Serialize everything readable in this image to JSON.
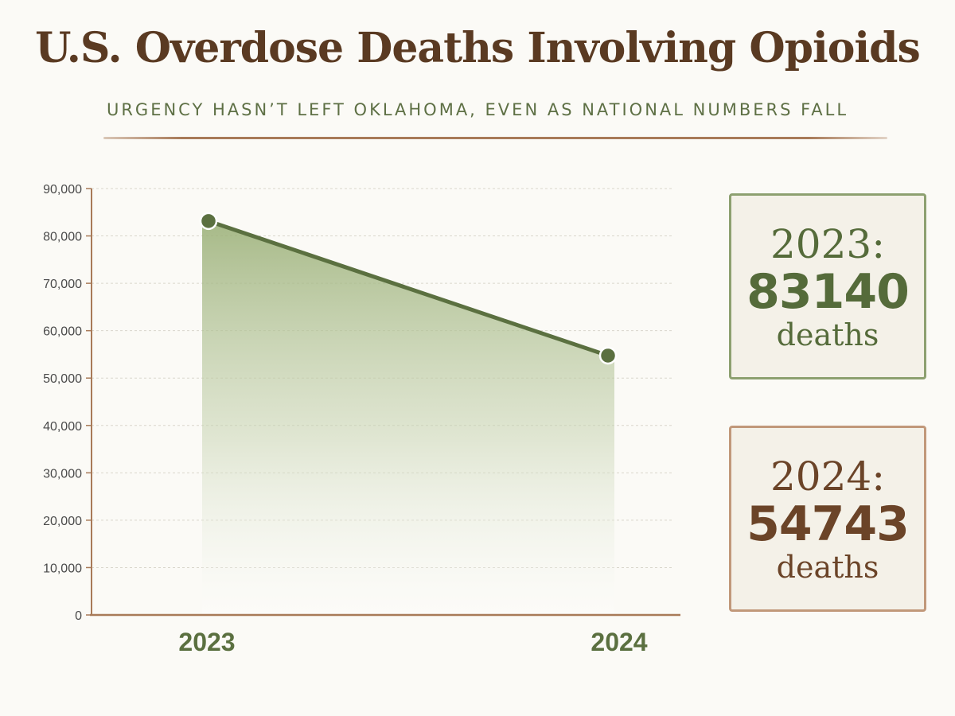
{
  "title": "U.S. Overdose Deaths Involving Opioids",
  "subtitle": "URGENCY HASN’T LEFT OKLAHOMA, EVEN AS NATIONAL NUMBERS FALL",
  "colors": {
    "green": "#5b7040",
    "brown": "#5a3a22",
    "axis": "#a87a58"
  },
  "chart_data": {
    "type": "area",
    "categories": [
      "2023",
      "2024"
    ],
    "series": [
      {
        "values": [
          83140,
          54743
        ]
      }
    ],
    "ylim": [
      0,
      90000
    ],
    "yticks": [
      "0",
      "10,000",
      "20,000",
      "30,000",
      "40,000",
      "50,000",
      "60,000",
      "70,000",
      "80,000",
      "90,000"
    ],
    "grid": true,
    "title": "U.S. Overdose Deaths Involving Opioids",
    "subtitle": "URGENCY HASN’T LEFT OKLAHOMA, EVEN AS NATIONAL NUMBERS FALL",
    "xlabel": "",
    "ylabel": ""
  },
  "cards": [
    {
      "year": "2023:",
      "value": "83140",
      "unit": "deaths"
    },
    {
      "year": "2024:",
      "value": "54743",
      "unit": "deaths"
    }
  ]
}
